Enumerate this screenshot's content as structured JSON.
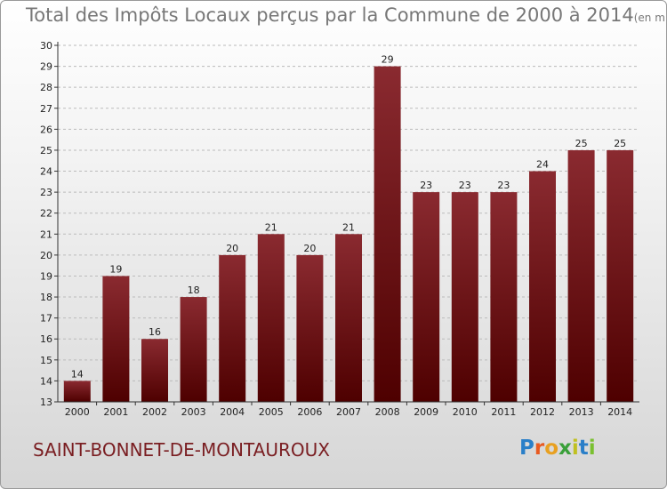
{
  "title": "Total des Impôts Locaux perçus par la Commune de 2000 à 2014",
  "title_unit": "(en milliers d'€)",
  "commune": "SAINT-BONNET-DE-MONTAUROUX",
  "logo": {
    "letters": [
      "P",
      "r",
      "o",
      "x",
      "i",
      "t",
      "i"
    ],
    "colors": [
      "#2a7fc8",
      "#e85a20",
      "#e8a020",
      "#3aa03a",
      "#c0c020",
      "#2a7fc8",
      "#7ac030"
    ]
  },
  "colors": {
    "bar_top": "#8a2a30",
    "bar_bottom": "#4e0000",
    "grid": "#bbbbbb",
    "axis": "#333333",
    "text": "#222222"
  },
  "chart_data": {
    "type": "bar",
    "title": "Total des Impôts Locaux perçus par la Commune de 2000 à 2014",
    "xlabel": "",
    "ylabel": "",
    "ylim": [
      13,
      30
    ],
    "yticks": [
      13,
      14,
      15,
      16,
      17,
      18,
      19,
      20,
      21,
      22,
      23,
      24,
      25,
      26,
      27,
      28,
      29,
      30
    ],
    "categories": [
      "2000",
      "2001",
      "2002",
      "2003",
      "2004",
      "2005",
      "2006",
      "2007",
      "2008",
      "2009",
      "2010",
      "2011",
      "2012",
      "2013",
      "2014"
    ],
    "values": [
      14,
      19,
      16,
      18,
      20,
      21,
      20,
      21,
      29,
      23,
      23,
      23,
      24,
      25,
      25
    ]
  }
}
